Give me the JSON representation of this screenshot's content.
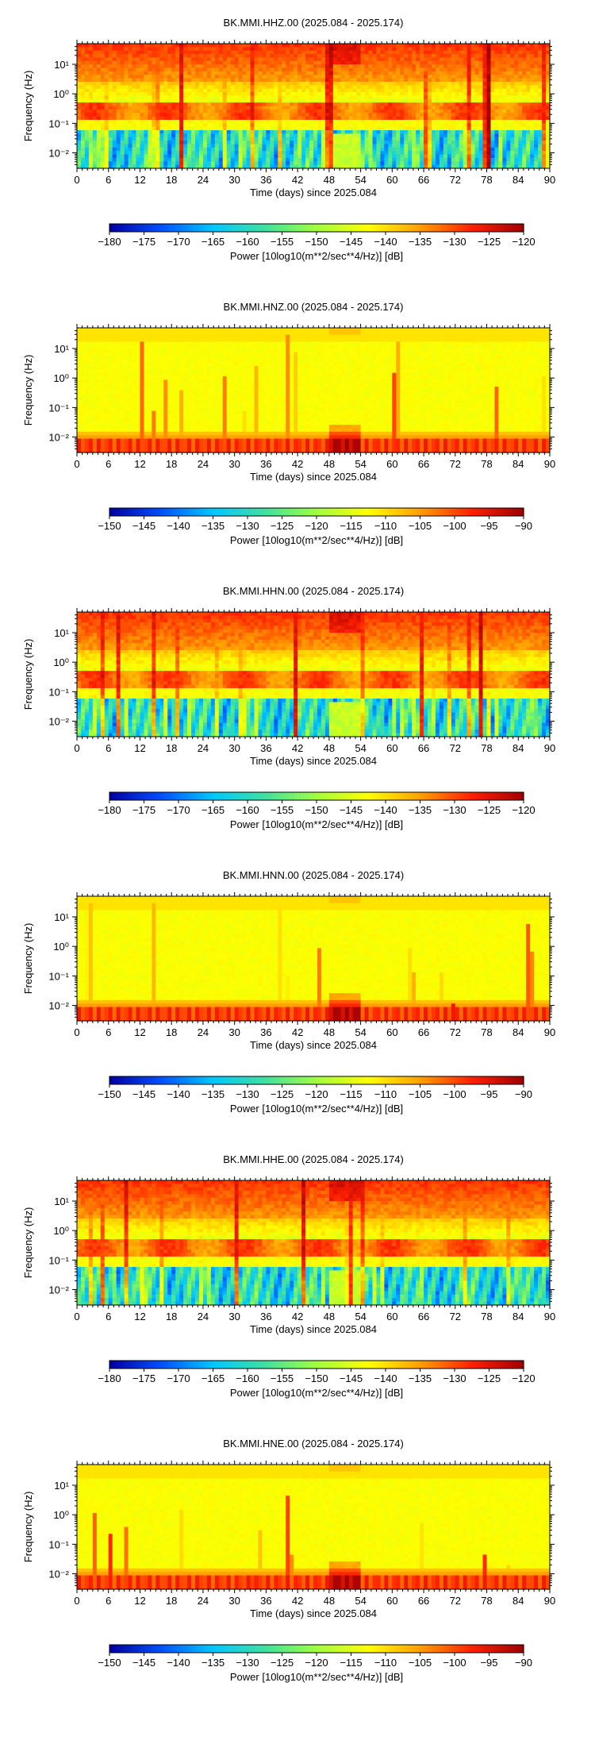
{
  "palette": {
    "stops": [
      "#0000a0",
      "#0050ff",
      "#00c8ff",
      "#40e0a0",
      "#a0ff40",
      "#ffff00",
      "#ffa000",
      "#ff2000",
      "#a00000"
    ]
  },
  "chart_data": [
    {
      "type": "heatmap",
      "title": "BK.MMI.HHZ.00 (2025.084 - 2025.174)",
      "xlabel": "Time (days) since 2025.084",
      "ylabel": "Frequency (Hz)",
      "x_ticks": [
        "0",
        "6",
        "12",
        "18",
        "24",
        "30",
        "36",
        "42",
        "48",
        "54",
        "60",
        "66",
        "72",
        "78",
        "84",
        "90"
      ],
      "xlim": [
        0,
        90
      ],
      "y_scale": "log",
      "y_ticks": [
        "10¹",
        "10⁰",
        "10⁻¹",
        "10⁻²"
      ],
      "ylim_hz": [
        0.003,
        50
      ],
      "colorbar_ticks": [
        "−180",
        "−175",
        "−170",
        "−165",
        "−160",
        "−155",
        "−150",
        "−145",
        "−140",
        "−135",
        "−130",
        "−125",
        "−120"
      ],
      "colorbar_label": "Power [10log10(m**2/sec**4/Hz)] [dB]",
      "crange_db": [
        -180,
        -120
      ],
      "pattern": "broadband"
    },
    {
      "type": "heatmap",
      "title": "BK.MMI.HNZ.00 (2025.084 - 2025.174)",
      "xlabel": "Time (days) since 2025.084",
      "ylabel": "Frequency (Hz)",
      "x_ticks": [
        "0",
        "6",
        "12",
        "18",
        "24",
        "30",
        "36",
        "42",
        "48",
        "54",
        "60",
        "66",
        "72",
        "78",
        "84",
        "90"
      ],
      "xlim": [
        0,
        90
      ],
      "y_scale": "log",
      "y_ticks": [
        "10¹",
        "10⁰",
        "10⁻¹",
        "10⁻²"
      ],
      "ylim_hz": [
        0.003,
        50
      ],
      "colorbar_ticks": [
        "−150",
        "−145",
        "−140",
        "−135",
        "−130",
        "−125",
        "−120",
        "−115",
        "−110",
        "−105",
        "−100",
        "−95",
        "−90"
      ],
      "colorbar_label": "Power [10log10(m**2/sec**4/Hz)] [dB]",
      "crange_db": [
        -150,
        -90
      ],
      "pattern": "strong"
    },
    {
      "type": "heatmap",
      "title": "BK.MMI.HHN.00 (2025.084 - 2025.174)",
      "xlabel": "Time (days) since 2025.084",
      "ylabel": "Frequency (Hz)",
      "x_ticks": [
        "0",
        "6",
        "12",
        "18",
        "24",
        "30",
        "36",
        "42",
        "48",
        "54",
        "60",
        "66",
        "72",
        "78",
        "84",
        "90"
      ],
      "xlim": [
        0,
        90
      ],
      "y_scale": "log",
      "y_ticks": [
        "10¹",
        "10⁰",
        "10⁻¹",
        "10⁻²"
      ],
      "ylim_hz": [
        0.003,
        50
      ],
      "colorbar_ticks": [
        "−180",
        "−175",
        "−170",
        "−165",
        "−160",
        "−155",
        "−150",
        "−145",
        "−140",
        "−135",
        "−130",
        "−125",
        "−120"
      ],
      "colorbar_label": "Power [10log10(m**2/sec**4/Hz)] [dB]",
      "crange_db": [
        -180,
        -120
      ],
      "pattern": "broadband"
    },
    {
      "type": "heatmap",
      "title": "BK.MMI.HNN.00 (2025.084 - 2025.174)",
      "xlabel": "Time (days) since 2025.084",
      "ylabel": "Frequency (Hz)",
      "x_ticks": [
        "0",
        "6",
        "12",
        "18",
        "24",
        "30",
        "36",
        "42",
        "48",
        "54",
        "60",
        "66",
        "72",
        "78",
        "84",
        "90"
      ],
      "xlim": [
        0,
        90
      ],
      "y_scale": "log",
      "y_ticks": [
        "10¹",
        "10⁰",
        "10⁻¹",
        "10⁻²"
      ],
      "ylim_hz": [
        0.003,
        50
      ],
      "colorbar_ticks": [
        "−150",
        "−145",
        "−140",
        "−135",
        "−130",
        "−125",
        "−120",
        "−115",
        "−110",
        "−105",
        "−100",
        "−95",
        "−90"
      ],
      "colorbar_label": "Power [10log10(m**2/sec**4/Hz)] [dB]",
      "crange_db": [
        -150,
        -90
      ],
      "pattern": "strong"
    },
    {
      "type": "heatmap",
      "title": "BK.MMI.HHE.00 (2025.084 - 2025.174)",
      "xlabel": "Time (days) since 2025.084",
      "ylabel": "Frequency (Hz)",
      "x_ticks": [
        "0",
        "6",
        "12",
        "18",
        "24",
        "30",
        "36",
        "42",
        "48",
        "54",
        "60",
        "66",
        "72",
        "78",
        "84",
        "90"
      ],
      "xlim": [
        0,
        90
      ],
      "y_scale": "log",
      "y_ticks": [
        "10¹",
        "10⁰",
        "10⁻¹",
        "10⁻²"
      ],
      "ylim_hz": [
        0.003,
        50
      ],
      "colorbar_ticks": [
        "−180",
        "−175",
        "−170",
        "−165",
        "−160",
        "−155",
        "−150",
        "−145",
        "−140",
        "−135",
        "−130",
        "−125",
        "−120"
      ],
      "colorbar_label": "Power [10log10(m**2/sec**4/Hz)] [dB]",
      "crange_db": [
        -180,
        -120
      ],
      "pattern": "broadband"
    },
    {
      "type": "heatmap",
      "title": "BK.MMI.HNE.00 (2025.084 - 2025.174)",
      "xlabel": "Time (days) since 2025.084",
      "ylabel": "Frequency (Hz)",
      "x_ticks": [
        "0",
        "6",
        "12",
        "18",
        "24",
        "30",
        "36",
        "42",
        "48",
        "54",
        "60",
        "66",
        "72",
        "78",
        "84",
        "90"
      ],
      "xlim": [
        0,
        90
      ],
      "y_scale": "log",
      "y_ticks": [
        "10¹",
        "10⁰",
        "10⁻¹",
        "10⁻²"
      ],
      "ylim_hz": [
        0.003,
        50
      ],
      "colorbar_ticks": [
        "−150",
        "−145",
        "−140",
        "−135",
        "−130",
        "−125",
        "−120",
        "−115",
        "−110",
        "−105",
        "−100",
        "−95",
        "−90"
      ],
      "colorbar_label": "Power [10log10(m**2/sec**4/Hz)] [dB]",
      "crange_db": [
        -150,
        -90
      ],
      "pattern": "strong"
    }
  ]
}
